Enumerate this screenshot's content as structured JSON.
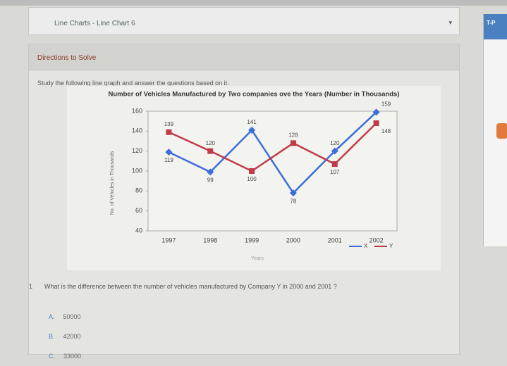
{
  "breadcrumb": "Line Charts - Line Chart 6",
  "side_badge": "T-P",
  "section_title": "Directions to Solve",
  "instructions": "Study the following line graph and answer the questions based on it.",
  "chart_data": {
    "type": "line",
    "title": "Number of Vehicles Manufactured by Two companies ove the Years (Number in Thousands)",
    "x_label": "Years",
    "y_label": "No. of Vehicles in Thousands",
    "categories": [
      "1997",
      "1998",
      "1999",
      "2000",
      "2001",
      "2002"
    ],
    "series": [
      {
        "name": "X",
        "color": "#3a6fd8",
        "values": [
          119,
          99,
          141,
          78,
          120,
          159
        ]
      },
      {
        "name": "Y",
        "color": "#c03a48",
        "values": [
          139,
          120,
          100,
          128,
          107,
          148
        ]
      }
    ],
    "ylim": [
      40,
      160
    ],
    "yticks": [
      40,
      60,
      80,
      100,
      120,
      140,
      160
    ],
    "grid": false,
    "legend": "bottom-right"
  },
  "question": {
    "number": "1",
    "text": "What is the difference between the number of vehicles manufactured by Company Y in 2000 and 2001 ?",
    "options": [
      {
        "letter": "A.",
        "text": "50000"
      },
      {
        "letter": "B.",
        "text": "42000"
      },
      {
        "letter": "C.",
        "text": "33000"
      }
    ]
  }
}
